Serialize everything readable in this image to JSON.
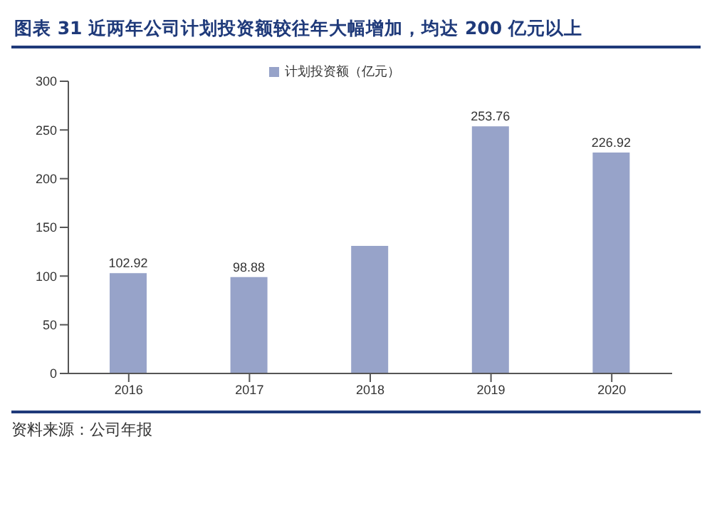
{
  "chart_data": {
    "type": "bar",
    "title": "图表 31   近两年公司计划投资额较往年大幅增加，均达 200 亿元以上",
    "categories": [
      "2016",
      "2017",
      "2018",
      "2019",
      "2020"
    ],
    "series": [
      {
        "name": "计划投资额（亿元）",
        "color": "#97a3c9",
        "values": [
          102.92,
          98.88,
          131,
          253.76,
          226.92
        ],
        "value_labels": [
          "102.92",
          "98.88",
          null,
          "253.76",
          "226.92"
        ]
      }
    ],
    "ylim": [
      0,
      300
    ],
    "yticks": [
      0,
      50,
      100,
      150,
      200,
      250,
      300
    ],
    "grid": false,
    "legend": "top",
    "annotations": [
      "资料来源：公司年报"
    ]
  }
}
